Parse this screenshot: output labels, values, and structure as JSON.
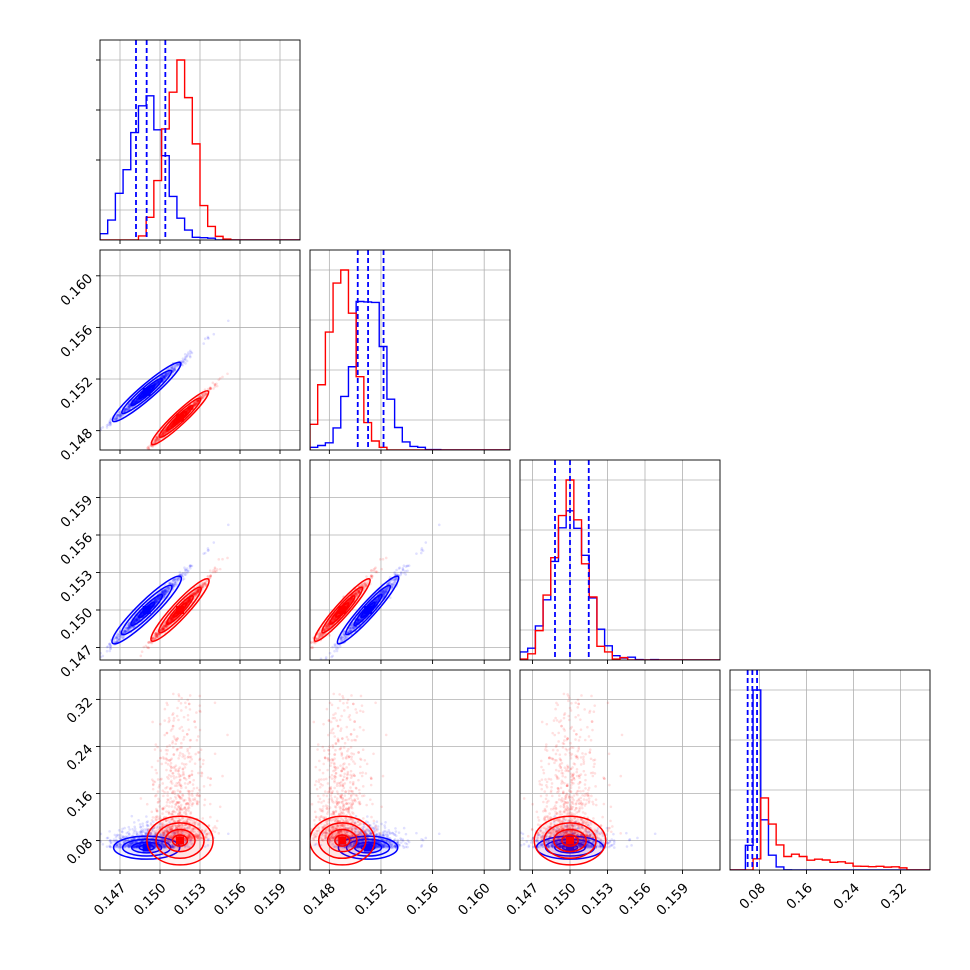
{
  "colors": {
    "series_a": "#0000ff",
    "series_b": "#ff0000",
    "grid": "#b0b0b0"
  },
  "chart_data": {
    "type": "corner",
    "grid": true,
    "parameters": [
      {
        "range": [
          0.1455,
          0.1605
        ],
        "ticks": [
          0.147,
          0.15,
          0.153,
          0.156,
          0.159
        ],
        "tick_labels": [
          "0.147",
          "0.150",
          "0.153",
          "0.156",
          "0.159"
        ]
      },
      {
        "range": [
          0.1465,
          0.162
        ],
        "ticks": [
          0.148,
          0.152,
          0.156,
          0.16
        ],
        "tick_labels": [
          "0.148",
          "0.152",
          "0.156",
          "0.160"
        ]
      },
      {
        "range": [
          0.146,
          0.162
        ],
        "ticks": [
          0.147,
          0.15,
          0.153,
          0.156,
          0.159
        ],
        "tick_labels": [
          "0.147",
          "0.150",
          "0.153",
          "0.156",
          "0.159"
        ]
      },
      {
        "range": [
          0.03,
          0.37
        ],
        "ticks": [
          0.08,
          0.16,
          0.24,
          0.32
        ],
        "tick_labels": [
          "0.08",
          "0.16",
          "0.24",
          "0.32"
        ]
      }
    ],
    "series": [
      {
        "color": "#0000ff",
        "means": [
          0.149,
          0.151,
          0.15,
          0.068
        ],
        "quantiles": [
          [
            0.1482,
            0.149,
            0.1504
          ],
          [
            0.1502,
            0.151,
            0.1522
          ],
          [
            0.1488,
            0.15,
            0.1515
          ],
          [
            0.06,
            0.068,
            0.076
          ]
        ]
      },
      {
        "color": "#ff0000",
        "means": [
          0.1515,
          0.149,
          0.15,
          0.08
        ],
        "quantiles": null
      }
    ],
    "correlations": {
      "0-1": 0.97,
      "0-2": 0.96,
      "1-2": 0.97,
      "0-3": 0.12,
      "1-3": 0.12,
      "2-3": 0.12
    }
  }
}
